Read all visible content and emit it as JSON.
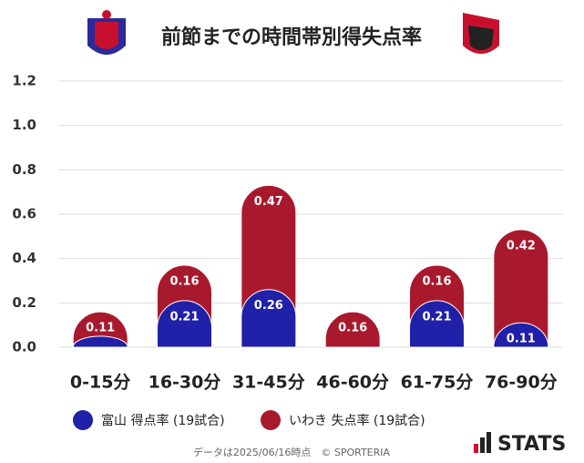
{
  "chart_data": {
    "type": "bar",
    "stacked": true,
    "title": "前節までの時間帯別得失点率",
    "categories": [
      "0-15分",
      "16-30分",
      "31-45分",
      "46-60分",
      "61-75分",
      "76-90分"
    ],
    "series": [
      {
        "name": "富山 得点率 (19試合)",
        "color": "#2020a8",
        "values": [
          0.05,
          0.21,
          0.26,
          0,
          0.21,
          0.11
        ],
        "value_labels": [
          null,
          "0.21",
          "0.26",
          null,
          "0.21",
          "0.11"
        ]
      },
      {
        "name": "いわき 失点率 (19試合)",
        "color": "#a8192e",
        "values": [
          0.11,
          0.16,
          0.47,
          0.16,
          0.16,
          0.42
        ]
      }
    ],
    "ylim": [
      0,
      1.2
    ],
    "yticks": [
      {
        "value": 0,
        "label": "0.0"
      },
      {
        "value": 0.2,
        "label": "0.2"
      },
      {
        "value": 0.4,
        "label": "0.4"
      },
      {
        "value": 0.6,
        "label": "0.6"
      },
      {
        "value": 0.8,
        "label": "0.8"
      },
      {
        "value": 1,
        "label": "1.0"
      },
      {
        "value": 1.2,
        "label": "1.2"
      }
    ],
    "grid": true,
    "footer": "データは2025/06/16時点　© SPORTERIA",
    "brand": "STATS"
  }
}
